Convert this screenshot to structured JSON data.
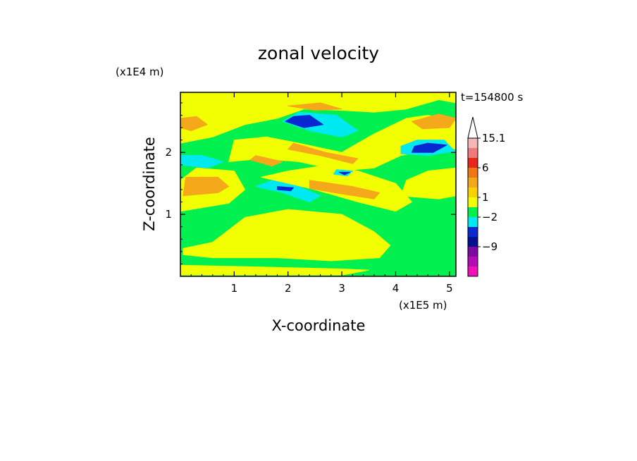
{
  "chart_data": {
    "type": "heatmap",
    "title": "zonal velocity",
    "time_label": "t=154800 s",
    "xlabel": "X-coordinate",
    "ylabel": "Z-coordinate",
    "x_scale_label": "(x1E5 m)",
    "y_scale_label": "(x1E4 m)",
    "xlim": [
      0,
      5.12
    ],
    "ylim": [
      0,
      2.97
    ],
    "x_ticks": [
      "1",
      "2",
      "3",
      "4",
      "5"
    ],
    "y_ticks": [
      "1",
      "2"
    ],
    "colorbar": {
      "labels": [
        "15.1",
        "6",
        "1",
        "-2",
        "-9"
      ],
      "bands": [
        {
          "color": "#f4b6b6"
        },
        {
          "color": "#ee7a7a"
        },
        {
          "color": "#e8261a"
        },
        {
          "color": "#f07810"
        },
        {
          "color": "#f5a81a"
        },
        {
          "color": "#f8d200"
        },
        {
          "color": "#f2ff00"
        },
        {
          "color": "#00f050"
        },
        {
          "color": "#00e8f0"
        },
        {
          "color": "#0a28d0"
        },
        {
          "color": "#001090"
        },
        {
          "color": "#7a0aa0"
        },
        {
          "color": "#b40ab8"
        },
        {
          "color": "#f010b8"
        }
      ]
    },
    "regions": [
      {
        "color": "#00f050",
        "points": [
          [
            0,
            0
          ],
          [
            5.12,
            0
          ],
          [
            5.12,
            2.97
          ],
          [
            0,
            2.97
          ]
        ]
      },
      {
        "color": "#f2ff00",
        "points": [
          [
            0.05,
            0.45
          ],
          [
            0.6,
            0.55
          ],
          [
            1.2,
            0.95
          ],
          [
            2.0,
            1.08
          ],
          [
            3.0,
            1.0
          ],
          [
            3.6,
            0.72
          ],
          [
            3.9,
            0.5
          ],
          [
            3.7,
            0.3
          ],
          [
            2.8,
            0.25
          ],
          [
            1.8,
            0.3
          ],
          [
            0.6,
            0.3
          ],
          [
            0.05,
            0.35
          ]
        ]
      },
      {
        "color": "#f2ff00",
        "points": [
          [
            0,
            0.18
          ],
          [
            1.5,
            0.15
          ],
          [
            3,
            0.12
          ],
          [
            3.5,
            0.1
          ],
          [
            3,
            0.02
          ],
          [
            1.2,
            0.02
          ],
          [
            0,
            0.02
          ]
        ]
      },
      {
        "color": "#f2ff00",
        "points": [
          [
            0,
            1.05
          ],
          [
            0.9,
            1.18
          ],
          [
            1.2,
            1.4
          ],
          [
            1.0,
            1.7
          ],
          [
            0.3,
            1.75
          ],
          [
            0,
            1.55
          ]
        ]
      },
      {
        "color": "#f2ff00",
        "points": [
          [
            1.5,
            1.6
          ],
          [
            2.5,
            1.4
          ],
          [
            3.3,
            1.2
          ],
          [
            4.0,
            1.05
          ],
          [
            4.3,
            1.2
          ],
          [
            4.0,
            1.5
          ],
          [
            3.3,
            1.7
          ],
          [
            2.6,
            1.78
          ],
          [
            2.0,
            1.7
          ]
        ]
      },
      {
        "color": "#f2ff00",
        "points": [
          [
            0.9,
            1.85
          ],
          [
            1.5,
            1.9
          ],
          [
            2.2,
            1.85
          ],
          [
            3.0,
            1.7
          ],
          [
            3.6,
            1.75
          ],
          [
            4.1,
            1.95
          ],
          [
            4.9,
            2.1
          ],
          [
            5.12,
            2.05
          ],
          [
            5.12,
            2.5
          ],
          [
            4.6,
            2.6
          ],
          [
            4.2,
            2.55
          ],
          [
            3.6,
            2.3
          ],
          [
            3.0,
            2.0
          ],
          [
            2.2,
            2.15
          ],
          [
            1.6,
            2.25
          ],
          [
            1.0,
            2.2
          ]
        ]
      },
      {
        "color": "#f2ff00",
        "points": [
          [
            0,
            2.15
          ],
          [
            0.6,
            2.25
          ],
          [
            1.2,
            2.45
          ],
          [
            1.8,
            2.55
          ],
          [
            2.3,
            2.7
          ],
          [
            3.0,
            2.68
          ],
          [
            3.6,
            2.65
          ],
          [
            4.2,
            2.7
          ],
          [
            4.8,
            2.85
          ],
          [
            5.12,
            2.8
          ],
          [
            5.12,
            2.97
          ],
          [
            0,
            2.97
          ]
        ]
      },
      {
        "color": "#f2ff00",
        "points": [
          [
            4.1,
            1.3
          ],
          [
            4.8,
            1.25
          ],
          [
            5.12,
            1.3
          ],
          [
            5.12,
            1.75
          ],
          [
            4.6,
            1.7
          ],
          [
            4.2,
            1.55
          ]
        ]
      },
      {
        "color": "#f5a81a",
        "points": [
          [
            0.05,
            1.3
          ],
          [
            0.7,
            1.35
          ],
          [
            0.9,
            1.45
          ],
          [
            0.7,
            1.6
          ],
          [
            0.1,
            1.6
          ]
        ]
      },
      {
        "color": "#f5a81a",
        "points": [
          [
            2.4,
            1.55
          ],
          [
            3.2,
            1.45
          ],
          [
            3.7,
            1.35
          ],
          [
            3.6,
            1.25
          ],
          [
            3.0,
            1.33
          ],
          [
            2.4,
            1.42
          ]
        ]
      },
      {
        "color": "#f5a81a",
        "points": [
          [
            2.1,
            2.15
          ],
          [
            2.7,
            2.0
          ],
          [
            3.3,
            1.9
          ],
          [
            3.2,
            1.82
          ],
          [
            2.6,
            1.95
          ],
          [
            2.0,
            2.05
          ]
        ]
      },
      {
        "color": "#f5a81a",
        "points": [
          [
            1.4,
            1.95
          ],
          [
            1.9,
            1.85
          ],
          [
            1.7,
            1.78
          ],
          [
            1.3,
            1.88
          ]
        ]
      },
      {
        "color": "#f5a81a",
        "points": [
          [
            0,
            2.55
          ],
          [
            0.3,
            2.58
          ],
          [
            0.5,
            2.45
          ],
          [
            0.2,
            2.35
          ],
          [
            0,
            2.4
          ]
        ]
      },
      {
        "color": "#f5a81a",
        "points": [
          [
            4.3,
            2.5
          ],
          [
            4.8,
            2.62
          ],
          [
            5.12,
            2.55
          ],
          [
            5.0,
            2.4
          ],
          [
            4.5,
            2.38
          ]
        ]
      },
      {
        "color": "#f5a81a",
        "points": [
          [
            2.0,
            2.75
          ],
          [
            2.6,
            2.8
          ],
          [
            3.0,
            2.7
          ],
          [
            2.5,
            2.68
          ]
        ]
      },
      {
        "color": "#00e8f0",
        "points": [
          [
            1.4,
            1.45
          ],
          [
            1.9,
            1.35
          ],
          [
            2.4,
            1.2
          ],
          [
            2.6,
            1.3
          ],
          [
            2.2,
            1.45
          ],
          [
            1.7,
            1.55
          ]
        ]
      },
      {
        "color": "#00e8f0",
        "points": [
          [
            1.9,
            2.5
          ],
          [
            2.4,
            2.35
          ],
          [
            3.0,
            2.25
          ],
          [
            3.3,
            2.35
          ],
          [
            2.9,
            2.6
          ],
          [
            2.2,
            2.65
          ]
        ]
      },
      {
        "color": "#00e8f0",
        "points": [
          [
            4.1,
            1.98
          ],
          [
            4.6,
            1.95
          ],
          [
            5.1,
            2.02
          ],
          [
            4.9,
            2.2
          ],
          [
            4.4,
            2.2
          ],
          [
            4.1,
            2.1
          ]
        ]
      },
      {
        "color": "#00e8f0",
        "points": [
          [
            0,
            1.95
          ],
          [
            0.4,
            1.95
          ],
          [
            0.8,
            1.85
          ],
          [
            0.5,
            1.75
          ],
          [
            0,
            1.8
          ]
        ]
      },
      {
        "color": "#00e8f0",
        "points": [
          [
            2.9,
            1.72
          ],
          [
            3.2,
            1.7
          ],
          [
            3.1,
            1.62
          ],
          [
            2.85,
            1.65
          ]
        ]
      },
      {
        "color": "#0a28d0",
        "points": [
          [
            1.95,
            2.5
          ],
          [
            2.3,
            2.4
          ],
          [
            2.65,
            2.45
          ],
          [
            2.4,
            2.6
          ],
          [
            2.1,
            2.58
          ]
        ]
      },
      {
        "color": "#0a28d0",
        "points": [
          [
            4.3,
            2.0
          ],
          [
            4.7,
            2.0
          ],
          [
            4.95,
            2.12
          ],
          [
            4.6,
            2.15
          ],
          [
            4.35,
            2.1
          ]
        ]
      },
      {
        "color": "#0a28d0",
        "points": [
          [
            1.8,
            1.45
          ],
          [
            2.1,
            1.43
          ],
          [
            2.05,
            1.38
          ],
          [
            1.8,
            1.4
          ]
        ]
      },
      {
        "color": "#0a28d0",
        "points": [
          [
            2.95,
            1.68
          ],
          [
            3.15,
            1.68
          ],
          [
            3.05,
            1.64
          ]
        ]
      }
    ]
  }
}
